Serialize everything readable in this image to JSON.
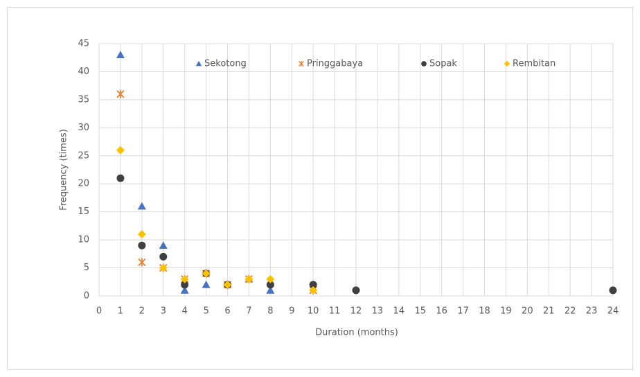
{
  "chart_data": {
    "type": "scatter",
    "xlabel": "Duration (months)",
    "ylabel": "Frequency (times)",
    "xlim": [
      0,
      24
    ],
    "xticks": [
      0,
      1,
      2,
      3,
      4,
      5,
      6,
      7,
      8,
      9,
      10,
      11,
      12,
      13,
      14,
      15,
      16,
      17,
      18,
      19,
      20,
      21,
      22,
      23,
      24
    ],
    "ylim": [
      0,
      45
    ],
    "yticks": [
      0,
      5,
      10,
      15,
      20,
      25,
      30,
      35,
      40,
      45
    ],
    "grid": true,
    "legend": "top",
    "series": [
      {
        "name": "Sekotong",
        "color": "#4472c4",
        "marker": "triangle",
        "x": [
          1,
          2,
          3,
          4,
          5,
          6,
          7,
          8
        ],
        "values": [
          43,
          16,
          9,
          1,
          2,
          2,
          3,
          1
        ]
      },
      {
        "name": "Pringgabaya",
        "color": "#ed7d31",
        "marker": "cross",
        "x": [
          1,
          2,
          3,
          4,
          5,
          6,
          7,
          10
        ],
        "values": [
          36,
          6,
          5,
          3,
          4,
          2,
          3,
          1
        ]
      },
      {
        "name": "Sopak",
        "color": "#404040",
        "marker": "circle",
        "x": [
          1,
          2,
          3,
          4,
          5,
          6,
          8,
          10,
          12,
          24
        ],
        "values": [
          21,
          9,
          7,
          2,
          4,
          2,
          2,
          2,
          1,
          1
        ]
      },
      {
        "name": "Rembitan",
        "color": "#ffc000",
        "marker": "diamond",
        "x": [
          1,
          2,
          3,
          4,
          5,
          6,
          7,
          8,
          10
        ],
        "values": [
          26,
          11,
          5,
          3,
          4,
          2,
          3,
          3,
          1
        ]
      }
    ]
  }
}
